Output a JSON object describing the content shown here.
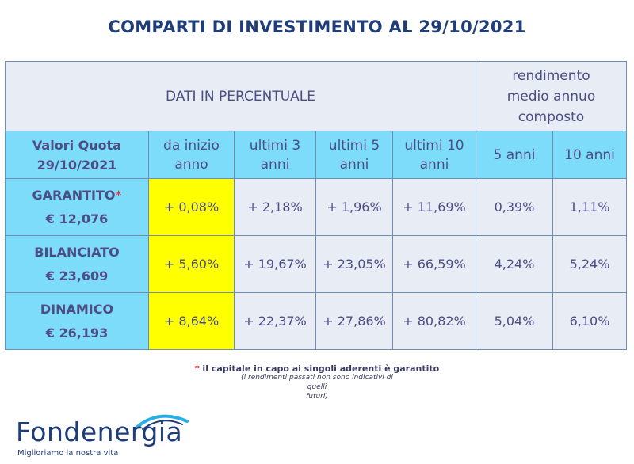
{
  "title": "COMPARTI DI INVESTIMENTO AL 29/10/2021",
  "table": {
    "header_main": "DATI IN PERCENTUALE",
    "header_rendimento": [
      "rendimento",
      "medio annuo",
      "composto"
    ],
    "col_valori": [
      "Valori Quota",
      "29/10/2021"
    ],
    "col_inizio": [
      "da inizio",
      "anno"
    ],
    "col_3anni": [
      "ultimi 3",
      "anni"
    ],
    "col_5anni": [
      "ultimi 5",
      "anni"
    ],
    "col_10anni": [
      "ultimi 10",
      "anni"
    ],
    "col_r5": "5 anni",
    "col_r10": "10 anni",
    "rows": [
      {
        "name": "GARANTITO",
        "star": "*",
        "quota": "€ 12,076",
        "ytd": "+ 0,08%",
        "y3": "+ 2,18%",
        "y5": "+ 1,96%",
        "y10": "+ 11,69%",
        "r5": "0,39%",
        "r10": "1,11%"
      },
      {
        "name": "BILANCIATO",
        "star": "",
        "quota": "€ 23,609",
        "ytd": "+ 5,60%",
        "y3": "+ 19,67%",
        "y5": "+ 23,05%",
        "y10": "+ 66,59%",
        "r5": "4,24%",
        "r10": "5,24%"
      },
      {
        "name": "DINAMICO",
        "star": "",
        "quota": "€ 26,193",
        "ytd": "+ 8,64%",
        "y3": "+ 22,37%",
        "y5": "+ 27,86%",
        "y10": "+ 80,82%",
        "r5": "5,04%",
        "r10": "6,10%"
      }
    ]
  },
  "notes": {
    "star": "*",
    "garantito": "il capitale in capo ai singoli aderenti è garantito",
    "disclaimer_1": "(i rendimenti passati non sono indicativi di quelli",
    "disclaimer_2": "futuri)"
  },
  "logo": {
    "name": "Fondenergia",
    "tagline": "Miglioriamo la nostra vita",
    "color": "#1f3d7a",
    "accent": "#29aee6"
  }
}
